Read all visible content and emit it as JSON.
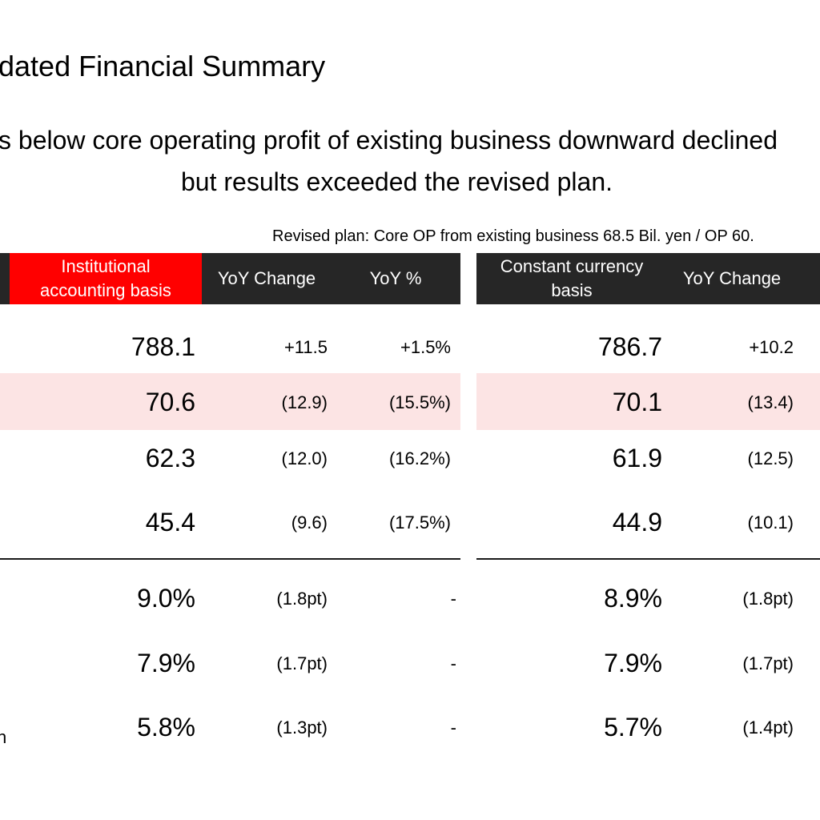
{
  "page": {
    "title": "dated Financial Summary",
    "subtitle_line1": "s below core operating profit of existing business downward declined",
    "subtitle_line2": "but results exceeded the revised plan.",
    "note": "Revised plan: Core OP from existing business 68.5 Bil. yen / OP 60.",
    "left_label_fragment": "n"
  },
  "table": {
    "headers": {
      "institutional": "Institutional accounting basis",
      "yoy_change": "YoY Change",
      "yoy_pct": "YoY %",
      "constant_currency": "Constant currency basis",
      "cc_yoy_change": "YoY Change"
    },
    "rows": [
      {
        "inst": "788.1",
        "chg": "+11.5",
        "pct": "+1.5%",
        "cc": "786.7",
        "cc_chg": "+10.2",
        "highlight": false
      },
      {
        "inst": "70.6",
        "chg": "(12.9)",
        "pct": "(15.5%)",
        "cc": "70.1",
        "cc_chg": "(13.4)",
        "highlight": true
      },
      {
        "inst": "62.3",
        "chg": "(12.0)",
        "pct": "(16.2%)",
        "cc": "61.9",
        "cc_chg": "(12.5)",
        "highlight": false
      },
      {
        "inst": "45.4",
        "chg": "(9.6)",
        "pct": "(17.5%)",
        "cc": "44.9",
        "cc_chg": "(10.1)",
        "highlight": false
      },
      {
        "inst": "9.0%",
        "chg": "(1.8pt)",
        "pct": "-",
        "cc": "8.9%",
        "cc_chg": "(1.8pt)",
        "highlight": false
      },
      {
        "inst": "7.9%",
        "chg": "(1.7pt)",
        "pct": "-",
        "cc": "7.9%",
        "cc_chg": "(1.7pt)",
        "highlight": false
      },
      {
        "inst": "5.8%",
        "chg": "(1.3pt)",
        "pct": "-",
        "cc": "5.7%",
        "cc_chg": "(1.4pt)",
        "highlight": false
      }
    ]
  },
  "colors": {
    "header_dark": "#262626",
    "header_accent": "#ff0000",
    "highlight_row": "#fce4e4"
  }
}
